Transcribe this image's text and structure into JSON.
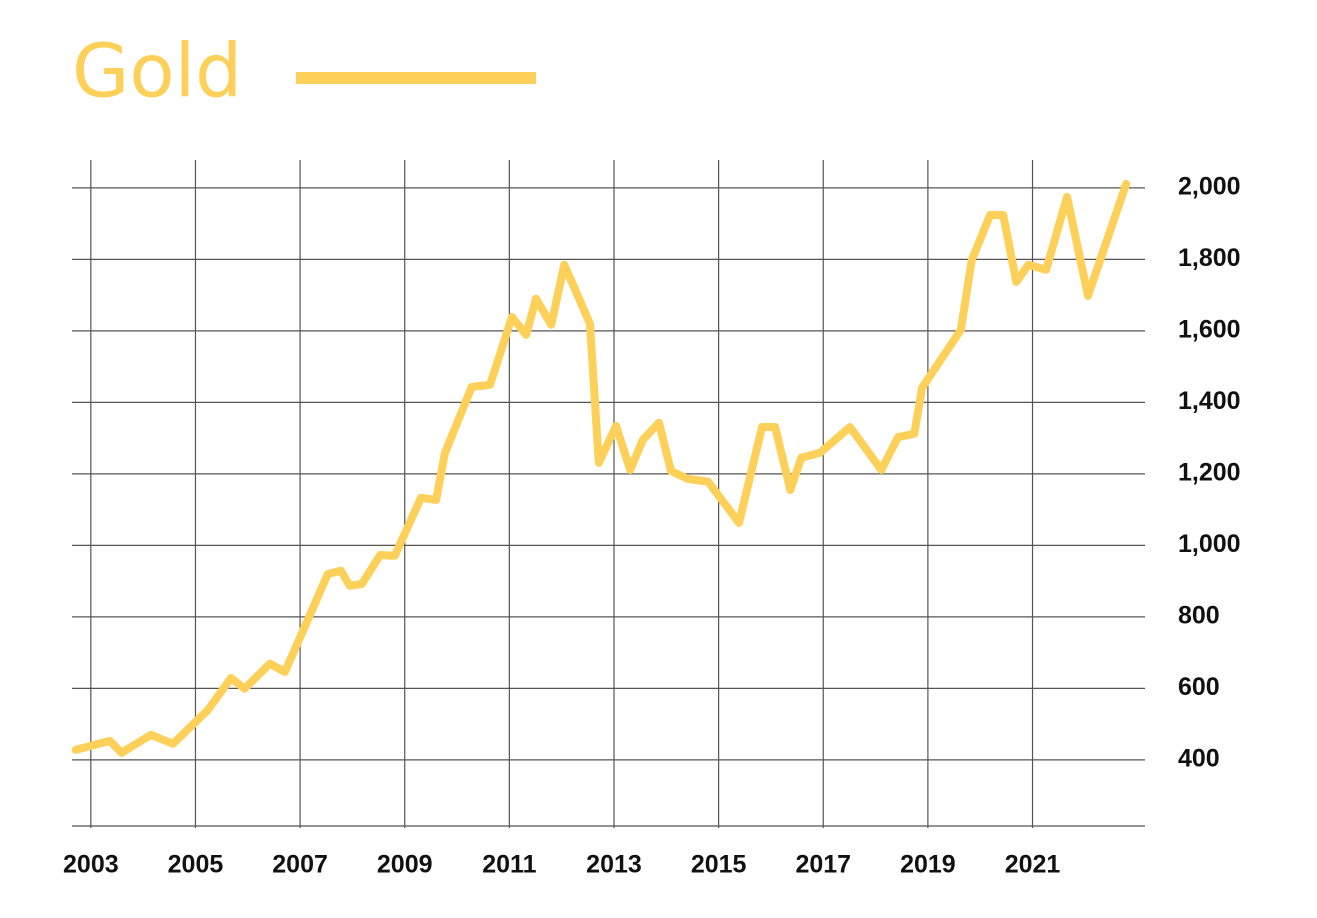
{
  "chart_data": {
    "type": "line",
    "series": [
      {
        "name": "Gold",
        "color": "#fdd05a",
        "x": [
          2002.71,
          2003.36,
          2003.59,
          2004.15,
          2004.57,
          2005.24,
          2005.68,
          2005.94,
          2006.42,
          2006.71,
          2007.53,
          2007.78,
          2007.95,
          2008.18,
          2008.53,
          2008.81,
          2009.31,
          2009.6,
          2009.77,
          2010.28,
          2010.63,
          2011.05,
          2011.32,
          2011.51,
          2011.8,
          2012.05,
          2012.54,
          2012.71,
          2013.04,
          2013.31,
          2013.55,
          2013.86,
          2014.09,
          2014.41,
          2014.8,
          2015.39,
          2015.83,
          2016.08,
          2016.37,
          2016.58,
          2016.94,
          2017.51,
          2018.11,
          2018.43,
          2018.74,
          2018.89,
          2019.63,
          2019.84,
          2020.19,
          2020.44,
          2020.69,
          2020.92,
          2021.26,
          2021.66,
          2022.06,
          2022.79
        ],
        "values": [
          428,
          453,
          420,
          470,
          445,
          540,
          629,
          599,
          669,
          646,
          920,
          929,
          887,
          892,
          973,
          971,
          1133,
          1127,
          1259,
          1443,
          1449,
          1639,
          1589,
          1690,
          1617,
          1785,
          1620,
          1231,
          1334,
          1211,
          1295,
          1343,
          1208,
          1186,
          1178,
          1063,
          1331,
          1331,
          1155,
          1245,
          1259,
          1331,
          1211,
          1303,
          1312,
          1441,
          1603,
          1799,
          1924,
          1924,
          1737,
          1785,
          1771,
          1975,
          1698,
          2011
        ]
      }
    ],
    "xlim": [
      2002.64,
      2023.15
    ],
    "xticks": [
      2003,
      2005,
      2007,
      2009,
      2011,
      2013,
      2015,
      2017,
      2019,
      2021
    ],
    "ylim": [
      215,
      2078
    ],
    "yticks": [
      400,
      600,
      800,
      {
        "value": 1000,
        "label": "1,000"
      },
      {
        "value": 1200,
        "label": "1,200"
      },
      {
        "value": 1400,
        "label": "1,400"
      },
      {
        "value": 1600,
        "label": "1,600"
      },
      {
        "value": 1800,
        "label": "1,800"
      },
      {
        "value": 2000,
        "label": "2,000"
      }
    ],
    "grid": true
  }
}
